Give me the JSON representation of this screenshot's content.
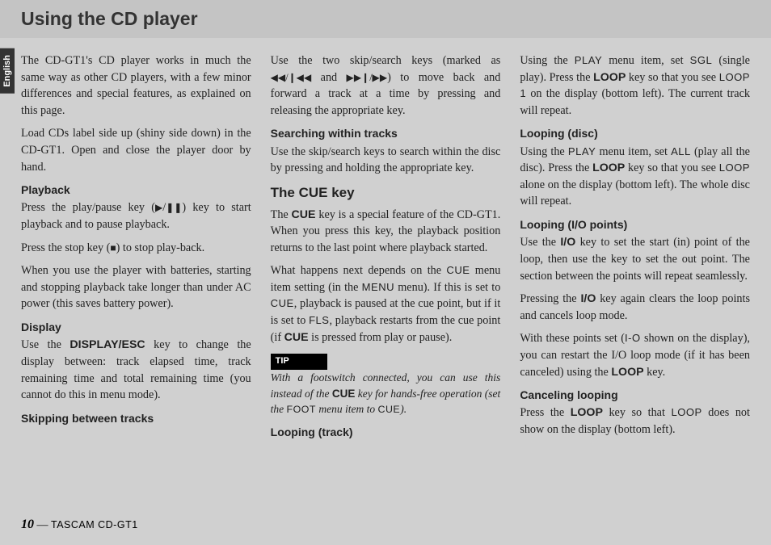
{
  "header": {
    "title": "Using the CD player"
  },
  "tab": {
    "language": "English"
  },
  "col1": {
    "intro1": "The CD-GT1's CD player works in much the same way as other CD players, with a few minor differences and special features, as explained on this page.",
    "intro2": "Load CDs label side up (shiny side down) in the CD-GT1. Open and close the player door by hand.",
    "playback_h": "Playback",
    "playback_p1a": "Press the play/pause key (",
    "playback_p1b": ") key to start playback and to pause playback.",
    "playback_p2a": "Press the stop key (",
    "playback_p2b": ") to stop play-back.",
    "playback_p3": "When you use the player with batteries, starting and stopping playback take longer than under AC power (this saves battery power).",
    "display_h": "Display",
    "display_p1a": "Use the ",
    "display_key": "DISPLAY/ESC",
    "display_p1b": " key to change the display between: track elapsed time, track remaining time and total remaining time (you cannot do this in menu mode)."
  },
  "col2": {
    "skip_h": "Skipping between tracks",
    "skip_p1a": "Use the two skip/search keys (marked as ",
    "skip_mid": " and ",
    "skip_p1b": ") to move back and forward a track at a time by pressing and releasing the appropriate key.",
    "search_h": "Searching within tracks",
    "search_p1": "Use the skip/search keys to search within the disc by pressing and holding the appropriate key.",
    "cue_h": "The CUE key",
    "cue_p1a": "The ",
    "cue_key": "CUE",
    "cue_p1b": " key is a special feature of the CD-GT1. When you press this key, the playback position returns to the last point where playback started.",
    "cue_p2a": "What happens next depends on the ",
    "cue_cue": "CUE",
    "cue_p2b": " menu item setting (in the ",
    "cue_menu": "MENU",
    "cue_p2c": " menu). If this is set to ",
    "cue_p2d": ", playback is paused at the cue point, but if it is set to ",
    "cue_fls": "FLS",
    "cue_p2e": ", playback restarts from the cue point (if ",
    "cue_p2f": " is pressed from play or pause).",
    "tip_label": "TIP",
    "tip_a": "With a footswitch connected, you can use this instead of the ",
    "tip_b": " key for hands-free operation (set the ",
    "tip_foot": "FOOT",
    "tip_c": " menu item to ",
    "tip_d": ")."
  },
  "col3": {
    "lt_h": "Looping (track)",
    "lt_a": "Using the ",
    "lt_play": "PLAY",
    "lt_b": " menu item, set ",
    "lt_sgl": "SGL",
    "lt_c": " (single play). Press the ",
    "lt_loop": "LOOP",
    "lt_d": " key so that you see ",
    "lt_loop1": "LOOP 1",
    "lt_e": " on the display (bottom left). The current track will repeat.",
    "ld_h": "Looping (disc)",
    "ld_a": "Using the ",
    "ld_b": " menu item, set ",
    "ld_all": "ALL",
    "ld_c": " (play all the disc). Press the ",
    "ld_d": " key so that you see ",
    "ld_loop": "LOOP",
    "ld_e": " alone on the display (bottom left). The whole disc will repeat.",
    "lio_h": "Looping (I/O points)",
    "lio_a": "Use the ",
    "lio_io": "I/O",
    "lio_b": " key to set the start (in) point of the loop, then use the key to set the out point. The section between the points will repeat seamlessly.",
    "lio_c": "Pressing the ",
    "lio_d": " key again clears the loop points and cancels loop mode.",
    "lio_e": "With these points set (",
    "lio_iotxt": "I-O",
    "lio_f": " shown on the display), you can restart the I/O loop mode (if it has been canceled) using the ",
    "lio_g": " key.",
    "cl_h": "Canceling looping",
    "cl_a": "Press the ",
    "cl_b": " key so that ",
    "cl_c": " does not show on the display (bottom left)."
  },
  "footer": {
    "page": "10",
    "sep": " — ",
    "model": "TASCAM CD-GT1"
  }
}
